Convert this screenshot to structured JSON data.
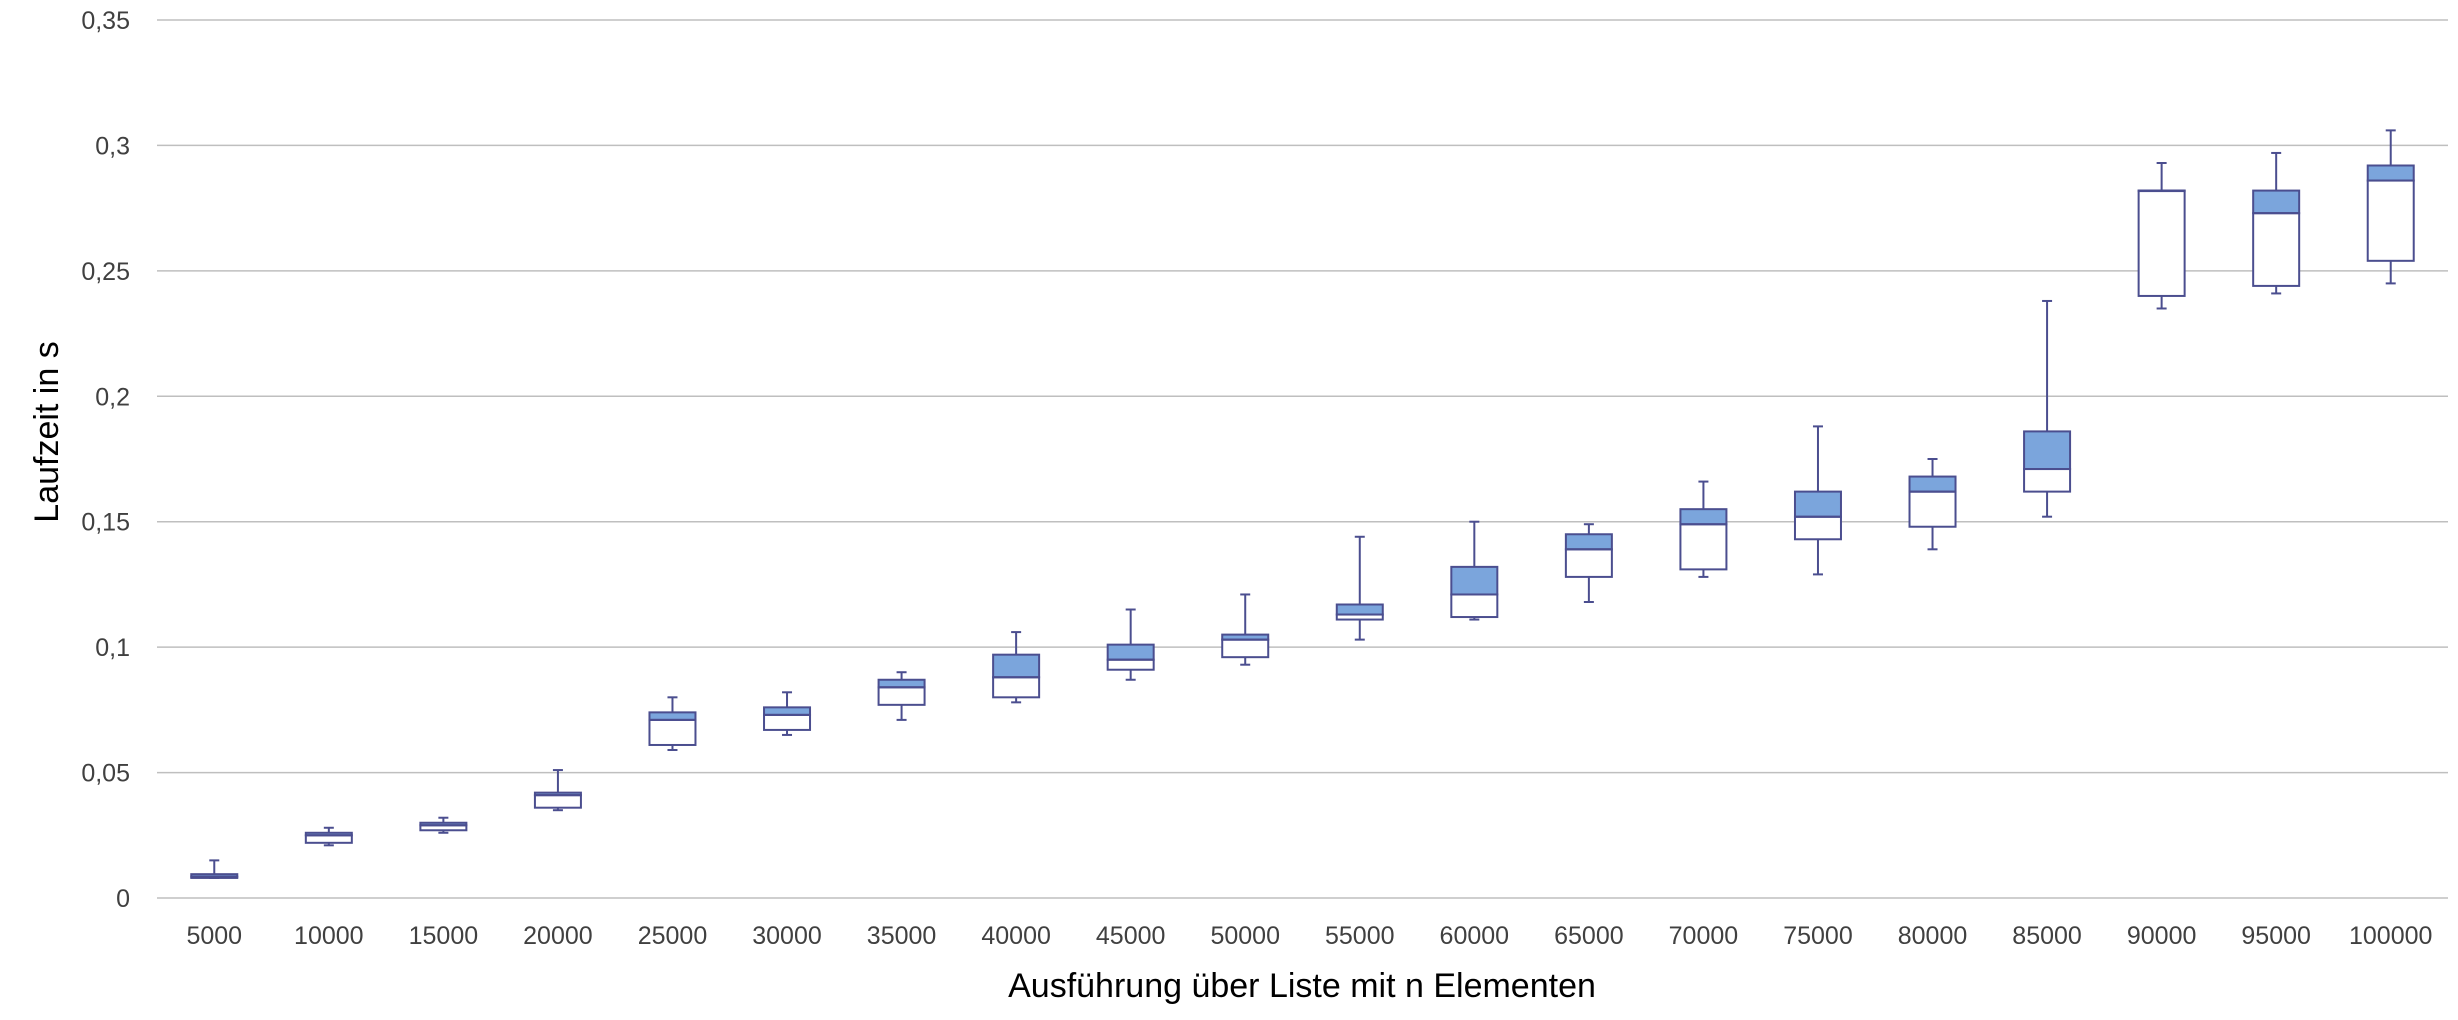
{
  "chart_data": {
    "type": "box",
    "xlabel": "Ausführung über Liste mit n Elementen",
    "ylabel": "Laufzeit in s",
    "ylim": [
      0,
      0.35
    ],
    "ytick_step": 0.05,
    "ytick_labels": [
      "0",
      "0,05",
      "0,1",
      "0,15",
      "0,2",
      "0,25",
      "0,3",
      "0,35"
    ],
    "grid": "horizontal",
    "categories": [
      "5000",
      "10000",
      "15000",
      "20000",
      "25000",
      "30000",
      "35000",
      "40000",
      "45000",
      "50000",
      "55000",
      "60000",
      "65000",
      "70000",
      "75000",
      "80000",
      "85000",
      "90000",
      "95000",
      "100000"
    ],
    "boxes": [
      {
        "min": 0.008,
        "q1": 0.008,
        "median": 0.0085,
        "q3": 0.0095,
        "max": 0.015
      },
      {
        "min": 0.021,
        "q1": 0.022,
        "median": 0.025,
        "q3": 0.026,
        "max": 0.028
      },
      {
        "min": 0.026,
        "q1": 0.027,
        "median": 0.029,
        "q3": 0.03,
        "max": 0.032
      },
      {
        "min": 0.035,
        "q1": 0.036,
        "median": 0.041,
        "q3": 0.042,
        "max": 0.051
      },
      {
        "min": 0.059,
        "q1": 0.061,
        "median": 0.071,
        "q3": 0.074,
        "max": 0.08
      },
      {
        "min": 0.065,
        "q1": 0.067,
        "median": 0.073,
        "q3": 0.076,
        "max": 0.082
      },
      {
        "min": 0.071,
        "q1": 0.077,
        "median": 0.084,
        "q3": 0.087,
        "max": 0.09
      },
      {
        "min": 0.078,
        "q1": 0.08,
        "median": 0.088,
        "q3": 0.097,
        "max": 0.106
      },
      {
        "min": 0.087,
        "q1": 0.091,
        "median": 0.095,
        "q3": 0.101,
        "max": 0.115
      },
      {
        "min": 0.093,
        "q1": 0.096,
        "median": 0.103,
        "q3": 0.105,
        "max": 0.121
      },
      {
        "min": 0.103,
        "q1": 0.111,
        "median": 0.113,
        "q3": 0.117,
        "max": 0.144
      },
      {
        "min": 0.111,
        "q1": 0.112,
        "median": 0.121,
        "q3": 0.132,
        "max": 0.15
      },
      {
        "min": 0.118,
        "q1": 0.128,
        "median": 0.139,
        "q3": 0.145,
        "max": 0.149
      },
      {
        "min": 0.128,
        "q1": 0.131,
        "median": 0.149,
        "q3": 0.155,
        "max": 0.166
      },
      {
        "min": 0.129,
        "q1": 0.143,
        "median": 0.152,
        "q3": 0.162,
        "max": 0.188
      },
      {
        "min": 0.139,
        "q1": 0.148,
        "median": 0.162,
        "q3": 0.168,
        "max": 0.175
      },
      {
        "min": 0.152,
        "q1": 0.162,
        "median": 0.171,
        "q3": 0.186,
        "max": 0.238
      },
      {
        "min": 0.235,
        "q1": 0.24,
        "median": 0.282,
        "q3": 0.282,
        "max": 0.293
      },
      {
        "min": 0.241,
        "q1": 0.244,
        "median": 0.273,
        "q3": 0.282,
        "max": 0.297
      },
      {
        "min": 0.245,
        "q1": 0.254,
        "median": 0.286,
        "q3": 0.292,
        "max": 0.306
      }
    ],
    "colors": {
      "outline": "#4b4e8f",
      "upper_box_fill": "#7ba5dc",
      "lower_box_fill": "#ffffff",
      "gridline": "#bfbfbf",
      "tick_text": "#404040",
      "axis_title_text": "#000000"
    }
  }
}
